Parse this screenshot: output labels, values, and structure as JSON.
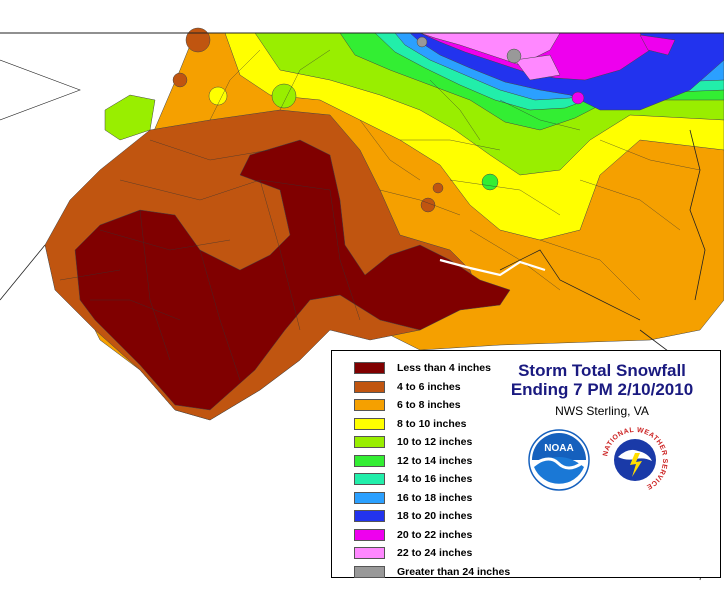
{
  "map": {
    "title_line1": "Storm Total Snowfall",
    "title_line2": "Ending 7 PM 2/10/2010",
    "office": "NWS Sterling, VA"
  },
  "legend": [
    {
      "label": "Less than 4 inches",
      "color": "#800000"
    },
    {
      "label": "4 to 6 inches",
      "color": "#c05510"
    },
    {
      "label": "6 to 8 inches",
      "color": "#f5a000"
    },
    {
      "label": "8 to 10 inches",
      "color": "#ffff00"
    },
    {
      "label": "10 to 12 inches",
      "color": "#99ee00"
    },
    {
      "label": "12 to 14 inches",
      "color": "#33ee33"
    },
    {
      "label": "14 to 16 inches",
      "color": "#22eeaa"
    },
    {
      "label": "16 to 18 inches",
      "color": "#2ba0ff"
    },
    {
      "label": "18 to 20 inches",
      "color": "#2233ee"
    },
    {
      "label": "20 to 22 inches",
      "color": "#ee00ee"
    },
    {
      "label": "22 to 24 inches",
      "color": "#ff88ff"
    },
    {
      "label": "Greater than 24 inches",
      "color": "#999999"
    }
  ],
  "logos": {
    "noaa": {
      "text": "NOAA",
      "icon": "noaa-logo"
    },
    "nws": {
      "text": "NATIONAL WEATHER SERVICE",
      "icon": "nws-logo"
    }
  },
  "colors": {
    "title": "#1a1a80",
    "noaa_blue": "#1560bd",
    "nws_red": "#cc2222"
  }
}
